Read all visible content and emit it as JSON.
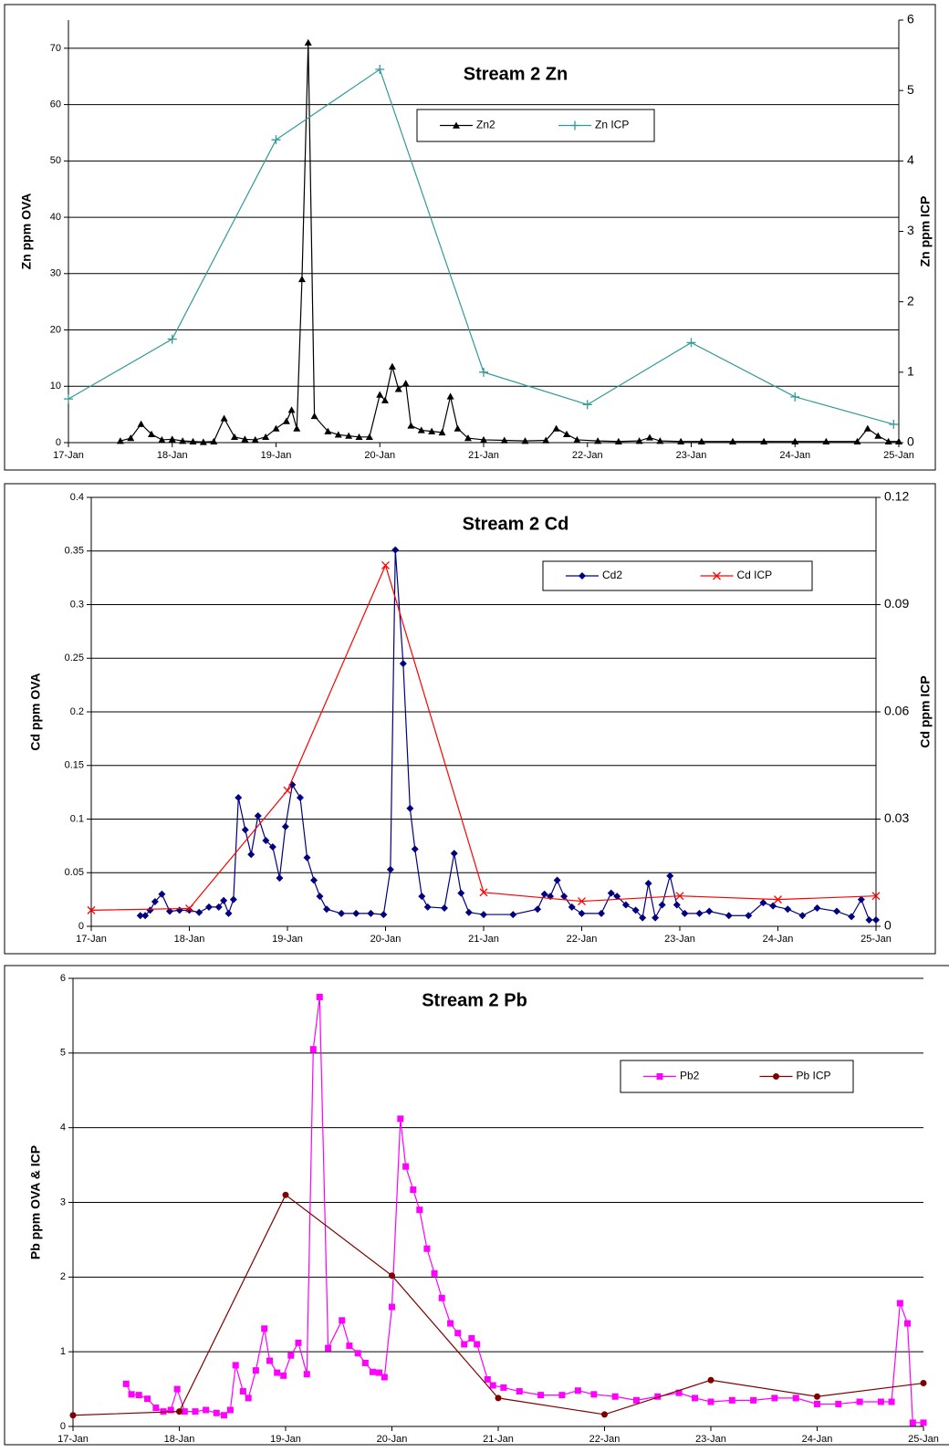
{
  "chart_data": [
    {
      "type": "line",
      "title": "Stream 2 Zn",
      "ylabel": "Zn ppm OVA",
      "y2label": "Zn ppm ICP",
      "grid": true,
      "xlim": [
        17,
        25
      ],
      "xticks": [
        {
          "value": 17,
          "label": "17-Jan"
        },
        {
          "value": 18,
          "label": "18-Jan"
        },
        {
          "value": 19,
          "label": "19-Jan"
        },
        {
          "value": 20,
          "label": "20-Jan"
        },
        {
          "value": 21,
          "label": "21-Jan"
        },
        {
          "value": 22,
          "label": "22-Jan"
        },
        {
          "value": 23,
          "label": "23-Jan"
        },
        {
          "value": 24,
          "label": "24-Jan"
        },
        {
          "value": 25,
          "label": "25-Jan"
        }
      ],
      "ylim": [
        0,
        75
      ],
      "yticks": [
        0,
        10,
        20,
        30,
        40,
        50,
        60,
        70
      ],
      "y2lim": [
        0,
        6
      ],
      "y2ticks": [
        0,
        1,
        2,
        3,
        4,
        5,
        6
      ],
      "series": [
        {
          "name": "Zn2",
          "color": "#000000",
          "marker": "triangle",
          "x": [
            17.5,
            17.6,
            17.7,
            17.8,
            17.9,
            18.0,
            18.1,
            18.2,
            18.3,
            18.4,
            18.5,
            18.6,
            18.7,
            18.8,
            18.9,
            19.0,
            19.1,
            19.15,
            19.2,
            19.25,
            19.31,
            19.37,
            19.5,
            19.6,
            19.7,
            19.8,
            19.9,
            20.0,
            20.05,
            20.12,
            20.18,
            20.25,
            20.3,
            20.4,
            20.5,
            20.6,
            20.68,
            20.75,
            20.85,
            21.0,
            21.2,
            21.4,
            21.6,
            21.7,
            21.8,
            21.9,
            22.1,
            22.3,
            22.5,
            22.6,
            22.7,
            22.9,
            23.1,
            23.4,
            23.7,
            24.0,
            24.3,
            24.6,
            24.7,
            24.8,
            24.9,
            25.0
          ],
          "values": [
            0.3,
            0.8,
            3.3,
            1.5,
            0.5,
            0.6,
            0.3,
            0.2,
            0.1,
            0.2,
            4.3,
            1.0,
            0.6,
            0.5,
            1.0,
            2.5,
            3.8,
            5.8,
            2.5,
            29,
            71,
            4.7,
            2,
            1.4,
            1.2,
            1.0,
            1.0,
            8.5,
            7.5,
            13.5,
            9.5,
            10.5,
            3,
            2.2,
            2,
            1.8,
            8.2,
            2.5,
            0.8,
            0.5,
            0.4,
            0.3,
            0.4,
            2.5,
            1.5,
            0.5,
            0.3,
            0.2,
            0.3,
            0.9,
            0.3,
            0.2,
            0.2,
            0.2,
            0.2,
            0.2,
            0.2,
            0.2,
            2.5,
            1.2,
            0.2,
            0.2
          ]
        },
        {
          "name": "Zn ICP",
          "color": "#339999",
          "marker": "plus",
          "axis": "y2",
          "x": [
            17,
            18,
            19,
            20,
            21,
            22,
            23,
            24,
            24.95
          ],
          "values": [
            0.62,
            1.47,
            4.3,
            5.3,
            1.0,
            0.54,
            1.42,
            0.65,
            0.26
          ]
        }
      ]
    },
    {
      "type": "line",
      "title": "Stream 2 Cd",
      "ylabel": "Cd ppm OVA",
      "y2label": "Cd ppm ICP",
      "grid": true,
      "xlim": [
        17,
        25
      ],
      "xticks": [
        {
          "value": 17,
          "label": "17-Jan"
        },
        {
          "value": 18,
          "label": "18-Jan"
        },
        {
          "value": 19,
          "label": "19-Jan"
        },
        {
          "value": 20,
          "label": "20-Jan"
        },
        {
          "value": 21,
          "label": "21-Jan"
        },
        {
          "value": 22,
          "label": "22-Jan"
        },
        {
          "value": 23,
          "label": "23-Jan"
        },
        {
          "value": 24,
          "label": "24-Jan"
        },
        {
          "value": 25,
          "label": "25-Jan"
        }
      ],
      "ylim": [
        0,
        0.4
      ],
      "yticks": [
        0,
        0.05,
        0.1,
        0.15,
        0.2,
        0.25,
        0.3,
        0.35,
        0.4
      ],
      "y2lim": [
        0,
        0.12
      ],
      "y2ticks": [
        0,
        0.03,
        0.06,
        0.09,
        0.12
      ],
      "series": [
        {
          "name": "Cd2",
          "color": "#000080",
          "marker": "diamond",
          "x": [
            17.5,
            17.55,
            17.6,
            17.65,
            17.72,
            17.8,
            17.9,
            18.0,
            18.1,
            18.2,
            18.3,
            18.35,
            18.4,
            18.45,
            18.5,
            18.57,
            18.63,
            18.7,
            18.78,
            18.85,
            18.92,
            18.98,
            19.05,
            19.13,
            19.2,
            19.27,
            19.33,
            19.4,
            19.55,
            19.7,
            19.85,
            19.98,
            20.05,
            20.1,
            20.18,
            20.25,
            20.3,
            20.37,
            20.43,
            20.6,
            20.7,
            20.77,
            20.85,
            21.0,
            21.3,
            21.55,
            21.62,
            21.68,
            21.75,
            21.82,
            21.9,
            22.0,
            22.2,
            22.3,
            22.36,
            22.45,
            22.55,
            22.62,
            22.68,
            22.75,
            22.82,
            22.9,
            22.97,
            23.05,
            23.2,
            23.3,
            23.5,
            23.7,
            23.85,
            23.95,
            24.1,
            24.25,
            24.4,
            24.6,
            24.75,
            24.85,
            24.93,
            25.0
          ],
          "values": [
            0.01,
            0.01,
            0.015,
            0.023,
            0.03,
            0.014,
            0.015,
            0.015,
            0.013,
            0.018,
            0.018,
            0.024,
            0.012,
            0.025,
            0.12,
            0.09,
            0.067,
            0.103,
            0.08,
            0.074,
            0.045,
            0.093,
            0.132,
            0.12,
            0.064,
            0.043,
            0.028,
            0.016,
            0.012,
            0.012,
            0.012,
            0.011,
            0.053,
            0.351,
            0.245,
            0.11,
            0.072,
            0.028,
            0.018,
            0.017,
            0.068,
            0.031,
            0.013,
            0.011,
            0.011,
            0.016,
            0.03,
            0.028,
            0.043,
            0.028,
            0.018,
            0.012,
            0.012,
            0.031,
            0.028,
            0.02,
            0.015,
            0.008,
            0.04,
            0.008,
            0.02,
            0.047,
            0.02,
            0.012,
            0.012,
            0.014,
            0.01,
            0.01,
            0.022,
            0.019,
            0.016,
            0.01,
            0.017,
            0.014,
            0.009,
            0.025,
            0.006,
            0.006
          ]
        },
        {
          "name": "Cd ICP",
          "color": "#ff0000",
          "marker": "x",
          "axis": "y2",
          "x": [
            17,
            18,
            19,
            20,
            21,
            22,
            23,
            24,
            25
          ],
          "values": [
            0.0045,
            0.005,
            0.038,
            0.101,
            0.0095,
            0.007,
            0.0085,
            0.0075,
            0.0085
          ]
        }
      ]
    },
    {
      "type": "line",
      "title": "Stream 2 Pb",
      "ylabel": "Pb ppm OVA & ICP",
      "grid": true,
      "xlim": [
        17,
        25
      ],
      "xticks": [
        {
          "value": 17,
          "label": "17-Jan"
        },
        {
          "value": 18,
          "label": "18-Jan"
        },
        {
          "value": 19,
          "label": "19-Jan"
        },
        {
          "value": 20,
          "label": "20-Jan"
        },
        {
          "value": 21,
          "label": "21-Jan"
        },
        {
          "value": 22,
          "label": "22-Jan"
        },
        {
          "value": 23,
          "label": "23-Jan"
        },
        {
          "value": 24,
          "label": "24-Jan"
        },
        {
          "value": 25,
          "label": "25-Jan"
        }
      ],
      "ylim": [
        0,
        6
      ],
      "yticks": [
        0,
        1,
        2,
        3,
        4,
        5,
        6
      ],
      "series": [
        {
          "name": "Pb2",
          "color": "#ff00ff",
          "marker": "square",
          "x": [
            17.5,
            17.55,
            17.62,
            17.7,
            17.78,
            17.85,
            17.92,
            17.98,
            18.05,
            18.15,
            18.25,
            18.35,
            18.42,
            18.48,
            18.53,
            18.6,
            18.65,
            18.72,
            18.8,
            18.85,
            18.92,
            18.98,
            19.05,
            19.12,
            19.2,
            19.26,
            19.32,
            19.4,
            19.53,
            19.6,
            19.68,
            19.75,
            19.82,
            19.88,
            19.93,
            20.0,
            20.08,
            20.13,
            20.2,
            20.26,
            20.33,
            20.4,
            20.47,
            20.55,
            20.62,
            20.68,
            20.75,
            20.8,
            20.9,
            20.95,
            21.05,
            21.2,
            21.4,
            21.6,
            21.75,
            21.9,
            22.1,
            22.3,
            22.5,
            22.7,
            22.85,
            23.0,
            23.2,
            23.4,
            23.6,
            23.8,
            24.0,
            24.2,
            24.4,
            24.6,
            24.7,
            24.78,
            24.85,
            24.9,
            25.0
          ],
          "values": [
            0.57,
            0.43,
            0.42,
            0.37,
            0.25,
            0.2,
            0.22,
            0.5,
            0.2,
            0.2,
            0.22,
            0.18,
            0.15,
            0.22,
            0.82,
            0.47,
            0.38,
            0.75,
            1.31,
            0.88,
            0.72,
            0.68,
            0.95,
            1.12,
            0.7,
            5.05,
            5.75,
            1.05,
            1.42,
            1.08,
            0.98,
            0.85,
            0.73,
            0.72,
            0.66,
            1.6,
            4.12,
            3.48,
            3.17,
            2.9,
            2.38,
            2.05,
            1.72,
            1.38,
            1.25,
            1.1,
            1.18,
            1.1,
            0.63,
            0.55,
            0.52,
            0.47,
            0.42,
            0.42,
            0.48,
            0.43,
            0.4,
            0.35,
            0.4,
            0.45,
            0.38,
            0.33,
            0.35,
            0.35,
            0.38,
            0.38,
            0.3,
            0.3,
            0.33,
            0.33,
            0.33,
            1.65,
            1.38,
            0.05,
            0.05
          ]
        },
        {
          "name": "Pb ICP",
          "color": "#800000",
          "marker": "circle",
          "x": [
            17,
            18,
            19,
            20,
            21,
            22,
            23,
            24,
            25
          ],
          "values": [
            0.15,
            0.2,
            3.1,
            2.02,
            0.38,
            0.16,
            0.62,
            0.4,
            0.58
          ]
        }
      ]
    }
  ]
}
